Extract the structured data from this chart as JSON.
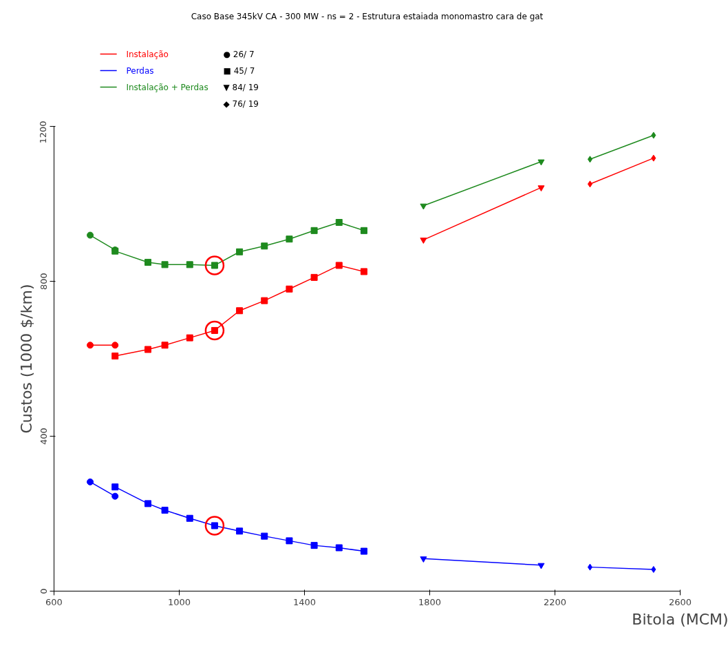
{
  "chart_data": {
    "type": "line",
    "title": "Caso Base 345kV CA - 300 MW - ns = 2 - Estrutura estaiada monomastro cara de gat",
    "xlabel": "Bitola (MCM)",
    "ylabel": "Custos (1000 $/km)",
    "xlim": [
      600,
      2600
    ],
    "xticks": [
      600,
      1000,
      1400,
      1800,
      2200,
      2600
    ],
    "ylim": [
      0,
      1200
    ],
    "yticks": [
      0,
      400,
      800,
      1200
    ],
    "grid": false,
    "legend": "top left",
    "annotations": [
      "● 26/ 7",
      "■ 45/ 7",
      "▼ 84/ 19",
      "◆ 76/ 19"
    ],
    "series": [
      {
        "name": "Instalação",
        "color": "#ff0000",
        "marker": "circle",
        "x": [
          715.5,
          795
        ],
        "values": [
          635,
          635
        ]
      },
      {
        "name": "Perdas",
        "color": "#0000ff",
        "marker": "circle",
        "x": [
          715.5,
          795
        ],
        "values": [
          282,
          245
        ]
      },
      {
        "name": "Instalação + Perdas",
        "color": "#1e8a1e",
        "marker": "circle",
        "x": [
          715.5,
          795
        ],
        "values": [
          919,
          881
        ]
      },
      {
        "color": "#ff0000",
        "marker": "square",
        "x": [
          795,
          900,
          954,
          1033.5,
          1113,
          1192.5,
          1272,
          1351.5,
          1431,
          1510.5,
          1590
        ],
        "values": [
          607,
          624,
          635,
          654,
          673,
          724,
          750,
          780,
          810,
          841,
          825
        ]
      },
      {
        "color": "#0000ff",
        "marker": "square",
        "x": [
          795,
          900,
          954,
          1033.5,
          1113,
          1192.5,
          1272,
          1351.5,
          1431,
          1510.5,
          1590
        ],
        "values": [
          269,
          226,
          209,
          188,
          169,
          155,
          142,
          130,
          118,
          112,
          103
        ]
      },
      {
        "color": "#1e8a1e",
        "marker": "square",
        "x": [
          795,
          900,
          954,
          1033.5,
          1113,
          1192.5,
          1272,
          1351.5,
          1431,
          1510.5,
          1590
        ],
        "values": [
          878,
          849,
          843,
          843,
          841,
          876,
          891,
          909,
          931,
          952,
          931
        ]
      },
      {
        "color": "#ff0000",
        "marker": "triangle",
        "x": [
          1780,
          2156
        ],
        "values": [
          907,
          1042
        ]
      },
      {
        "color": "#0000ff",
        "marker": "triangle",
        "x": [
          1780,
          2156
        ],
        "values": [
          84,
          67
        ]
      },
      {
        "color": "#1e8a1e",
        "marker": "triangle",
        "x": [
          1780,
          2156
        ],
        "values": [
          995,
          1109
        ]
      },
      {
        "color": "#ff0000",
        "marker": "diamond",
        "x": [
          2312,
          2515
        ],
        "values": [
          1051,
          1118
        ]
      },
      {
        "color": "#0000ff",
        "marker": "diamond",
        "x": [
          2312,
          2515
        ],
        "values": [
          62,
          56
        ]
      },
      {
        "color": "#1e8a1e",
        "marker": "diamond",
        "x": [
          2312,
          2515
        ],
        "values": [
          1115,
          1177
        ]
      },
      {
        "type": "scatter",
        "color": "#ff0000",
        "marker": "circle",
        "x": [
          1113,
          1113,
          1113
        ],
        "values": [
          841,
          673,
          169
        ]
      }
    ]
  }
}
